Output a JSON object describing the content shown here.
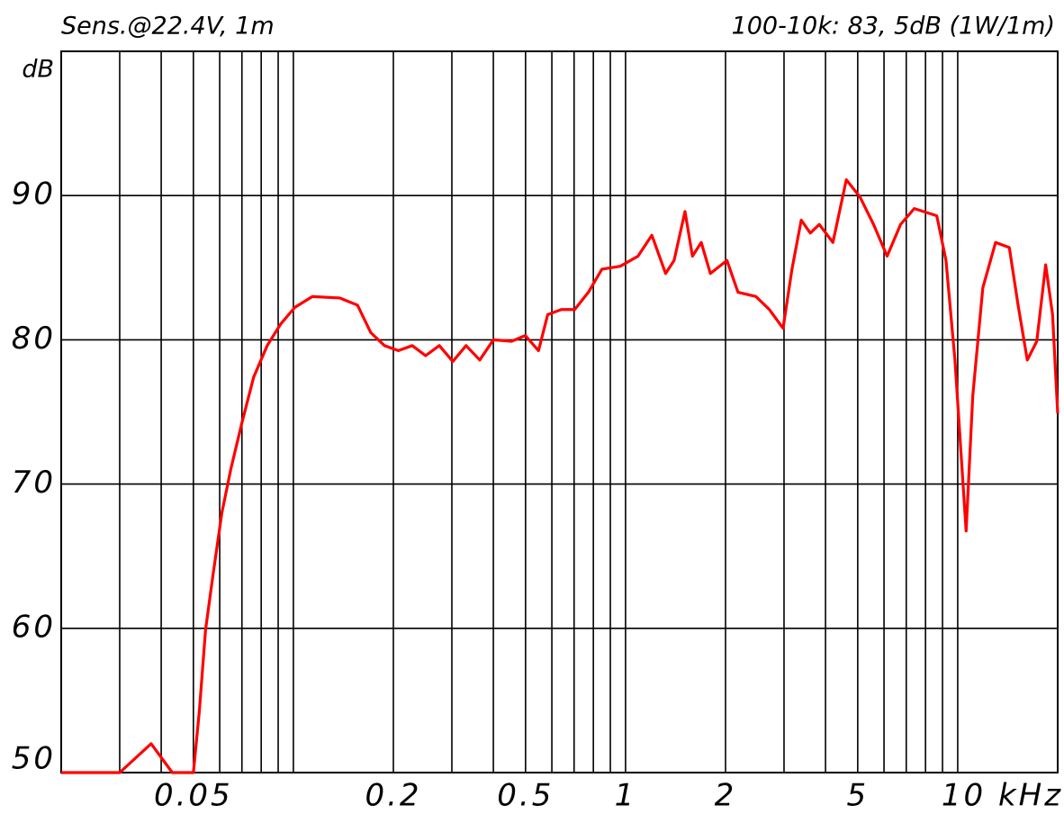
{
  "chart_data": {
    "type": "line",
    "title": "Sens.@22.4V, 1m",
    "subtitle": "100-10k: 83, 5dB (1W/1m)",
    "y_label": "dB",
    "x_scale": "log",
    "grid": true,
    "xlim": [
      0.02,
      20
    ],
    "ylim": [
      50,
      100
    ],
    "xticks": [
      0.05,
      0.2,
      0.5,
      1,
      2,
      5,
      {
        "value": 10,
        "label": "10 kHz"
      }
    ],
    "xgrid": [
      0.03,
      0.04,
      0.06,
      0.07,
      0.08,
      0.09,
      0.1,
      0.3,
      0.4,
      0.6,
      0.7,
      0.8,
      0.9,
      3,
      4,
      6,
      7,
      8,
      9
    ],
    "yticks": [
      50,
      60,
      70,
      80,
      90
    ],
    "x": [
      0.02,
      0.03,
      0.0373,
      0.0432,
      0.05,
      0.0521,
      0.0544,
      0.0572,
      0.0609,
      0.0649,
      0.07,
      0.0759,
      0.0834,
      0.0916,
      0.101,
      0.114,
      0.138,
      0.156,
      0.171,
      0.188,
      0.207,
      0.228,
      0.25,
      0.275,
      0.302,
      0.331,
      0.364,
      0.4,
      0.454,
      0.499,
      0.547,
      0.583,
      0.641,
      0.703,
      0.773,
      0.849,
      0.964,
      1.09,
      1.2,
      1.32,
      1.4,
      1.51,
      1.59,
      1.69,
      1.8,
      2.02,
      2.18,
      2.47,
      2.71,
      2.98,
      3.17,
      3.38,
      3.6,
      3.83,
      4.21,
      4.62,
      5.08,
      5.58,
      6.13,
      6.73,
      7.4,
      8.65,
      9.22,
      9.81,
      10.6,
      11.1,
      11.9,
      13,
      14.3,
      15.2,
      16.2,
      17.3,
      18.4,
      19.3,
      20
    ],
    "series": [
      {
        "name": "Sens.@22.4V, 1m",
        "color": "#ff0000",
        "values": [
          50,
          50,
          52,
          50,
          50,
          54.25,
          59.9,
          63.6,
          68,
          71.1,
          74.25,
          77.4,
          79.6,
          81.1,
          82.25,
          83,
          82.9,
          82.4,
          80.5,
          79.6,
          79.25,
          79.6,
          78.9,
          79.6,
          78.5,
          79.6,
          78.6,
          80,
          79.9,
          80.3,
          79.25,
          81.75,
          82.1,
          82.1,
          83.3,
          84.9,
          85.1,
          85.8,
          87.25,
          84.6,
          85.5,
          88.9,
          85.8,
          86.75,
          84.6,
          85.5,
          83.3,
          83,
          82.1,
          80.8,
          84.9,
          88.3,
          87.4,
          88,
          86.75,
          91.1,
          89.9,
          88,
          85.8,
          88,
          89.1,
          88.6,
          85.5,
          78.6,
          66.75,
          76.1,
          83.6,
          86.75,
          86.4,
          82.4,
          78.6,
          79.9,
          85.2,
          81.75,
          74.9
        ]
      }
    ]
  }
}
